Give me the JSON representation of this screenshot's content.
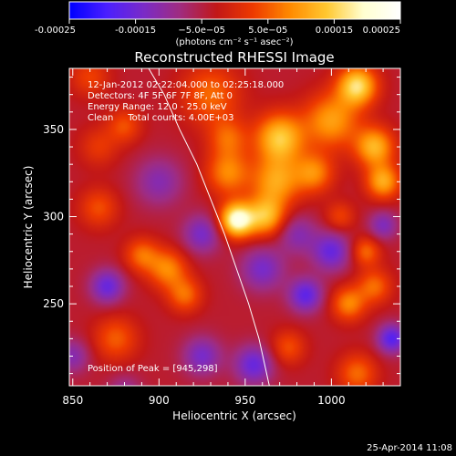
{
  "chart_data": {
    "type": "heatmap",
    "title": "Reconstructed RHESSI Image",
    "xlabel": "Heliocentric X (arcsec)",
    "ylabel": "Heliocentric Y (arcsec)",
    "xlim": [
      848,
      1040
    ],
    "ylim": [
      203,
      385
    ],
    "x_ticks": [
      850,
      900,
      950,
      1000
    ],
    "y_ticks": [
      250,
      300,
      350
    ],
    "colorbar": {
      "range": [
        -0.00025,
        0.00025
      ],
      "ticks": [
        {
          "value": -0.00025,
          "label": "-0.00025"
        },
        {
          "value": -0.00015,
          "label": "-0.00015"
        },
        {
          "value": -5e-05,
          "label": "−5.0e−05"
        },
        {
          "value": 5e-05,
          "label": "5.0e−05"
        },
        {
          "value": 0.00015,
          "label": "0.00015"
        },
        {
          "value": 0.00025,
          "label": "0.00025"
        }
      ],
      "units": "(photons cm⁻² s⁻¹ asec⁻²)",
      "colors": [
        "#0000ff",
        "#4b1fff",
        "#7a2bc8",
        "#a02c80",
        "#c21818",
        "#ee3a00",
        "#ff8a00",
        "#ffc830",
        "#ffffd0",
        "#ffffff"
      ]
    },
    "annotations": [
      "12-Jan-2012 02:22:04.000 to 02:25:18.000",
      "Detectors: 4F 5F 6F 7F 8F, Att 0",
      "Energy Range: 12.0 - 25.0 keV",
      "Clean     Total counts: 4.00E+03"
    ],
    "peak_label": "Position of Peak = [945,298]",
    "peak": [
      945,
      298
    ],
    "limb_curve": [
      [
        894,
        385
      ],
      [
        903,
        370
      ],
      [
        912,
        350
      ],
      [
        922,
        330
      ],
      [
        930,
        310
      ],
      [
        938,
        290
      ],
      [
        945,
        270
      ],
      [
        952,
        250
      ],
      [
        958,
        230
      ],
      [
        964,
        203
      ]
    ],
    "blobs": [
      {
        "x": 945,
        "y": 298,
        "v": 0.00025,
        "s": 7
      },
      {
        "x": 962,
        "y": 300,
        "v": 0.00016,
        "s": 8
      },
      {
        "x": 968,
        "y": 320,
        "v": 0.00014,
        "s": 10
      },
      {
        "x": 940,
        "y": 325,
        "v": 0.00012,
        "s": 9
      },
      {
        "x": 970,
        "y": 345,
        "v": 0.00018,
        "s": 10
      },
      {
        "x": 1000,
        "y": 355,
        "v": 0.00014,
        "s": 11
      },
      {
        "x": 1015,
        "y": 375,
        "v": 0.0002,
        "s": 8
      },
      {
        "x": 1025,
        "y": 340,
        "v": 0.00016,
        "s": 8
      },
      {
        "x": 1030,
        "y": 320,
        "v": 0.00015,
        "s": 7
      },
      {
        "x": 990,
        "y": 325,
        "v": 0.00012,
        "s": 8
      },
      {
        "x": 930,
        "y": 370,
        "v": 0.0001,
        "s": 12
      },
      {
        "x": 940,
        "y": 345,
        "v": 9e-05,
        "s": 8
      },
      {
        "x": 905,
        "y": 270,
        "v": 0.00012,
        "s": 8
      },
      {
        "x": 890,
        "y": 278,
        "v": 0.0001,
        "s": 7
      },
      {
        "x": 915,
        "y": 255,
        "v": 0.0001,
        "s": 7
      },
      {
        "x": 1010,
        "y": 250,
        "v": 0.00012,
        "s": 7
      },
      {
        "x": 1025,
        "y": 260,
        "v": 0.0001,
        "s": 7
      },
      {
        "x": 1020,
        "y": 280,
        "v": 0.0001,
        "s": 6
      },
      {
        "x": 1015,
        "y": 210,
        "v": 0.0001,
        "s": 8
      },
      {
        "x": 975,
        "y": 225,
        "v": 8e-05,
        "s": 7
      },
      {
        "x": 865,
        "y": 305,
        "v": 8e-05,
        "s": 8
      },
      {
        "x": 875,
        "y": 230,
        "v": 9e-05,
        "s": 9
      },
      {
        "x": 865,
        "y": 340,
        "v": 6e-05,
        "s": 8
      },
      {
        "x": 880,
        "y": 352,
        "v": 8e-05,
        "s": 7
      },
      {
        "x": 860,
        "y": 380,
        "v": 7e-05,
        "s": 8
      },
      {
        "x": 1005,
        "y": 300,
        "v": 7e-05,
        "s": 6
      },
      {
        "x": 900,
        "y": 320,
        "v": -8e-05,
        "s": 10
      },
      {
        "x": 870,
        "y": 260,
        "v": -0.00012,
        "s": 7
      },
      {
        "x": 925,
        "y": 290,
        "v": -0.0001,
        "s": 8
      },
      {
        "x": 960,
        "y": 270,
        "v": -0.0001,
        "s": 9
      },
      {
        "x": 985,
        "y": 255,
        "v": -0.00013,
        "s": 7
      },
      {
        "x": 1000,
        "y": 280,
        "v": -0.00012,
        "s": 8
      },
      {
        "x": 1035,
        "y": 230,
        "v": -0.00014,
        "s": 6
      },
      {
        "x": 1030,
        "y": 295,
        "v": -9e-05,
        "s": 6
      },
      {
        "x": 955,
        "y": 215,
        "v": -0.00012,
        "s": 8
      },
      {
        "x": 925,
        "y": 220,
        "v": -0.0001,
        "s": 8
      },
      {
        "x": 980,
        "y": 290,
        "v": -8e-05,
        "s": 8
      },
      {
        "x": 850,
        "y": 220,
        "v": -8e-05,
        "s": 7
      },
      {
        "x": 880,
        "y": 200,
        "v": -6e-05,
        "s": 7
      }
    ]
  },
  "footer": {
    "timestamp": "25-Apr-2014 11:08"
  }
}
